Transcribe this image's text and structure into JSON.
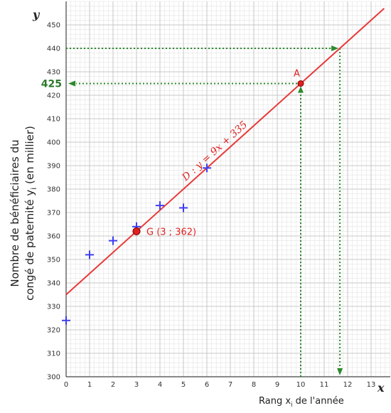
{
  "chart_data": {
    "type": "scatter",
    "xlabel": "Rang x",
    "xlabel_sub": "i",
    "xlabel_tail": " de l'année",
    "ylabel_line1": "Nombre de bénéficiaires du",
    "ylabel_line2": "congé de paternité y",
    "ylabel_sub": "i",
    "ylabel_tail": " (en millier)",
    "x_axis_name": "x",
    "y_axis_name": "y",
    "xlim": [
      0,
      13.8
    ],
    "ylim": [
      300,
      457
    ],
    "x_ticks": [
      "0",
      "1",
      "2",
      "3",
      "4",
      "5",
      "6",
      "7",
      "8",
      "9",
      "10",
      "11",
      "12",
      "13"
    ],
    "y_ticks": [
      "300",
      "310",
      "320",
      "330",
      "340",
      "350",
      "360",
      "370",
      "380",
      "390",
      "400",
      "410",
      "420",
      "430",
      "440",
      "450"
    ],
    "grid": true,
    "points": [
      {
        "x": 0,
        "y": 324
      },
      {
        "x": 1,
        "y": 352
      },
      {
        "x": 2,
        "y": 358
      },
      {
        "x": 3,
        "y": 364
      },
      {
        "x": 4,
        "y": 373
      },
      {
        "x": 5,
        "y": 372
      },
      {
        "x": 6,
        "y": 389
      }
    ],
    "point_color": "#3d3df0",
    "regression": {
      "label": "D : y = 9x + 335",
      "slope": 9,
      "intercept": 335,
      "color": "#e83a3a"
    },
    "mean_point": {
      "label": "G (3 ; 362)",
      "x": 3,
      "y": 362
    },
    "point_A": {
      "label": "A",
      "x": 10,
      "y": 425
    },
    "highlight_value": "425",
    "guide_y": 440,
    "guide_x": 11.67,
    "guide_color": "#2a8a2a"
  }
}
